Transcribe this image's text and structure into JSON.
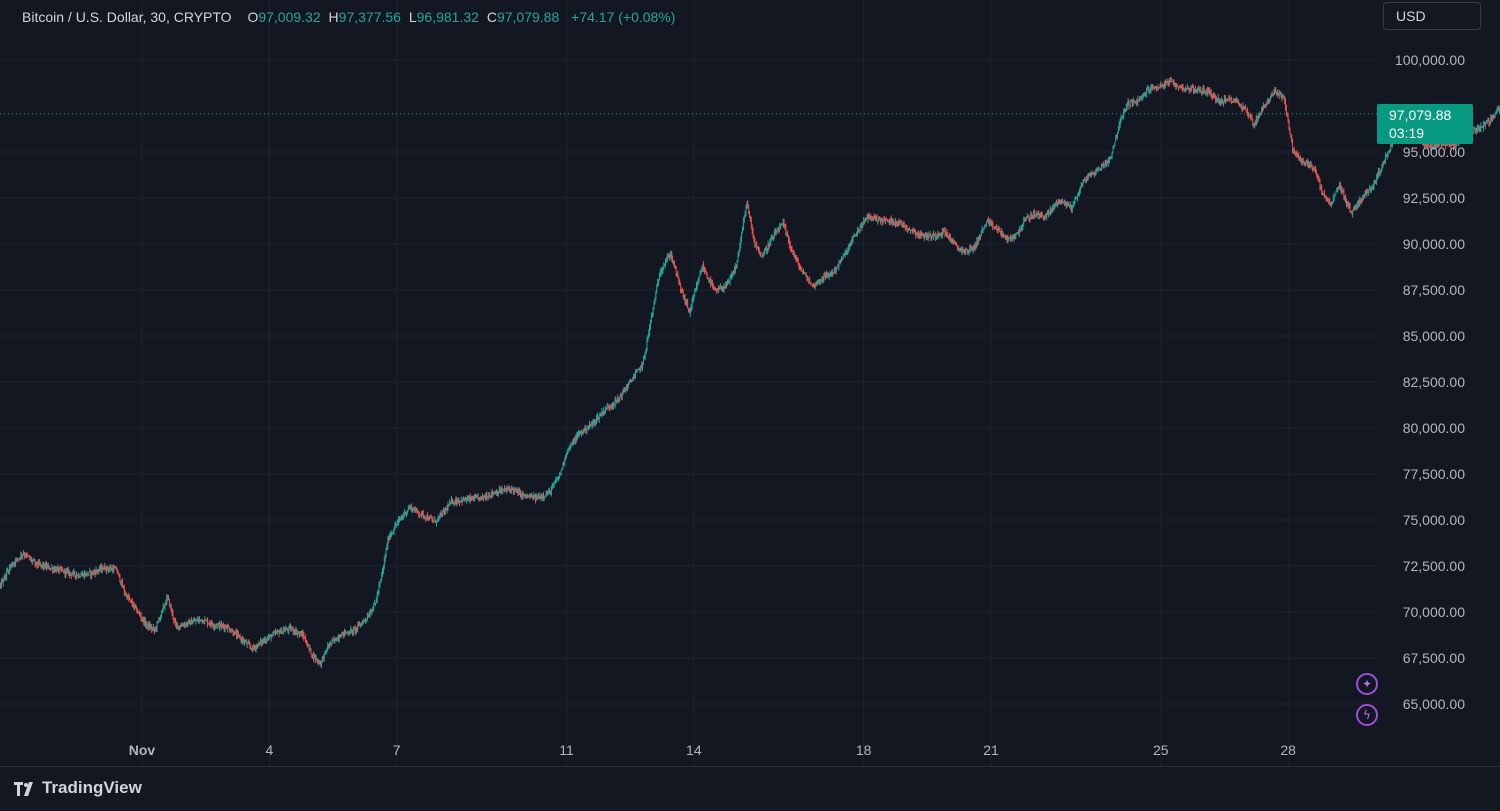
{
  "header": {
    "symbol": "Bitcoin / U.S. Dollar, 30, CRYPTO",
    "open_label": "O",
    "open_value": "97,009.32",
    "high_label": "H",
    "high_value": "97,377.56",
    "low_label": "L",
    "low_value": "96,981.32",
    "close_label": "C",
    "close_value": "97,079.88",
    "change": "+74.17 (+0.08%)"
  },
  "currency": "USD",
  "last_price": {
    "price": "97,079.88",
    "countdown": "03:19"
  },
  "footer": {
    "brand": "TradingView"
  },
  "colors": {
    "background": "#131722",
    "grid": "#1f2330",
    "up": "#26a69a",
    "down": "#ef5350",
    "axis_text": "#b2b5be",
    "accent_purple": "#9c4fd6"
  },
  "icons": [
    "sparkle-icon",
    "lightning-icon",
    "tradingview-logo-icon"
  ],
  "chart_data": {
    "type": "candlestick",
    "title": "Bitcoin / U.S. Dollar, 30, CRYPTO",
    "interval": "30",
    "x_axis": {
      "ticks": [
        "Nov",
        "4",
        "7",
        "11",
        "14",
        "18",
        "21",
        "25",
        "28"
      ]
    },
    "y_axis": {
      "position": "right",
      "ticks": [
        "65,000.00",
        "67,500.00",
        "70,000.00",
        "72,500.00",
        "75,000.00",
        "77,500.00",
        "80,000.00",
        "82,500.00",
        "85,000.00",
        "87,500.00",
        "90,000.00",
        "92,500.00",
        "95,000.00",
        "100,000.00"
      ],
      "range": [
        63000,
        101000
      ]
    },
    "grid": true,
    "last_close": 97079.88,
    "price_path": [
      [
        0,
        69800
      ],
      [
        0.3,
        71000
      ],
      [
        0.6,
        71200
      ],
      [
        0.9,
        72500
      ],
      [
        1.2,
        73200
      ],
      [
        1.5,
        72600
      ],
      [
        2.0,
        72300
      ],
      [
        2.5,
        72000
      ],
      [
        2.8,
        72100
      ],
      [
        3.1,
        72400
      ],
      [
        3.4,
        72300
      ],
      [
        3.6,
        71000
      ],
      [
        3.9,
        70000
      ],
      [
        4.1,
        69300
      ],
      [
        4.3,
        69000
      ],
      [
        4.6,
        70800
      ],
      [
        4.8,
        69200
      ],
      [
        5.1,
        69400
      ],
      [
        5.4,
        69600
      ],
      [
        5.7,
        69300
      ],
      [
        6.0,
        69200
      ],
      [
        6.3,
        68600
      ],
      [
        6.6,
        68000
      ],
      [
        6.9,
        68500
      ],
      [
        7.2,
        68900
      ],
      [
        7.5,
        69100
      ],
      [
        7.8,
        68700
      ],
      [
        8.0,
        67700
      ],
      [
        8.2,
        67200
      ],
      [
        8.4,
        68200
      ],
      [
        8.7,
        68800
      ],
      [
        9.0,
        69000
      ],
      [
        9.3,
        69700
      ],
      [
        9.5,
        70500
      ],
      [
        9.65,
        72000
      ],
      [
        9.8,
        74000
      ],
      [
        10.0,
        74800
      ],
      [
        10.3,
        75700
      ],
      [
        10.6,
        75300
      ],
      [
        10.9,
        74900
      ],
      [
        11.1,
        75400
      ],
      [
        11.3,
        76000
      ],
      [
        11.6,
        76100
      ],
      [
        12.0,
        76200
      ],
      [
        12.3,
        76500
      ],
      [
        12.7,
        76700
      ],
      [
        13.0,
        76300
      ],
      [
        13.3,
        76200
      ],
      [
        13.6,
        76500
      ],
      [
        13.85,
        77500
      ],
      [
        14.0,
        78700
      ],
      [
        14.3,
        79700
      ],
      [
        14.6,
        80200
      ],
      [
        14.9,
        81000
      ],
      [
        15.2,
        81500
      ],
      [
        15.5,
        82500
      ],
      [
        15.8,
        83500
      ],
      [
        16.0,
        86000
      ],
      [
        16.2,
        88500
      ],
      [
        16.45,
        89500
      ],
      [
        16.7,
        87500
      ],
      [
        16.9,
        86300
      ],
      [
        17.2,
        88800
      ],
      [
        17.5,
        87400
      ],
      [
        17.8,
        87800
      ],
      [
        18.0,
        88800
      ],
      [
        18.25,
        92300
      ],
      [
        18.4,
        90300
      ],
      [
        18.6,
        89300
      ],
      [
        18.9,
        90500
      ],
      [
        19.1,
        91100
      ],
      [
        19.3,
        89700
      ],
      [
        19.5,
        88700
      ],
      [
        19.8,
        87700
      ],
      [
        20.0,
        88100
      ],
      [
        20.3,
        88500
      ],
      [
        20.6,
        89600
      ],
      [
        20.8,
        90500
      ],
      [
        21.1,
        91500
      ],
      [
        21.4,
        91300
      ],
      [
        21.8,
        91200
      ],
      [
        22.1,
        90800
      ],
      [
        22.3,
        90500
      ],
      [
        22.6,
        90400
      ],
      [
        22.9,
        90700
      ],
      [
        23.2,
        89800
      ],
      [
        23.4,
        89600
      ],
      [
        23.6,
        89800
      ],
      [
        23.9,
        91200
      ],
      [
        24.2,
        90700
      ],
      [
        24.4,
        90200
      ],
      [
        24.6,
        90500
      ],
      [
        24.8,
        91300
      ],
      [
        25.0,
        91600
      ],
      [
        25.3,
        91500
      ],
      [
        25.6,
        92400
      ],
      [
        25.9,
        92000
      ],
      [
        26.2,
        93500
      ],
      [
        26.5,
        94000
      ],
      [
        26.8,
        94600
      ],
      [
        27.0,
        96300
      ],
      [
        27.2,
        97600
      ],
      [
        27.5,
        97800
      ],
      [
        27.7,
        98400
      ],
      [
        28.0,
        98600
      ],
      [
        28.2,
        98800
      ],
      [
        28.5,
        98500
      ],
      [
        28.8,
        98400
      ],
      [
        29.1,
        98300
      ],
      [
        29.4,
        97700
      ],
      [
        29.7,
        97900
      ],
      [
        30.0,
        97300
      ],
      [
        30.2,
        96500
      ],
      [
        30.4,
        97400
      ],
      [
        30.7,
        98300
      ],
      [
        30.9,
        98000
      ],
      [
        31.1,
        95200
      ],
      [
        31.3,
        94500
      ],
      [
        31.6,
        94200
      ],
      [
        31.8,
        92800
      ],
      [
        32.0,
        92100
      ],
      [
        32.2,
        93200
      ],
      [
        32.5,
        91700
      ],
      [
        32.7,
        92400
      ],
      [
        33.0,
        93200
      ],
      [
        33.3,
        94700
      ],
      [
        33.55,
        96100
      ],
      [
        33.8,
        96200
      ],
      [
        34.0,
        95900
      ],
      [
        34.3,
        95300
      ],
      [
        34.6,
        95500
      ],
      [
        34.9,
        95400
      ],
      [
        35.2,
        95900
      ],
      [
        35.5,
        96300
      ],
      [
        35.8,
        96800
      ],
      [
        36.0,
        97500
      ],
      [
        36.15,
        97080
      ]
    ]
  }
}
